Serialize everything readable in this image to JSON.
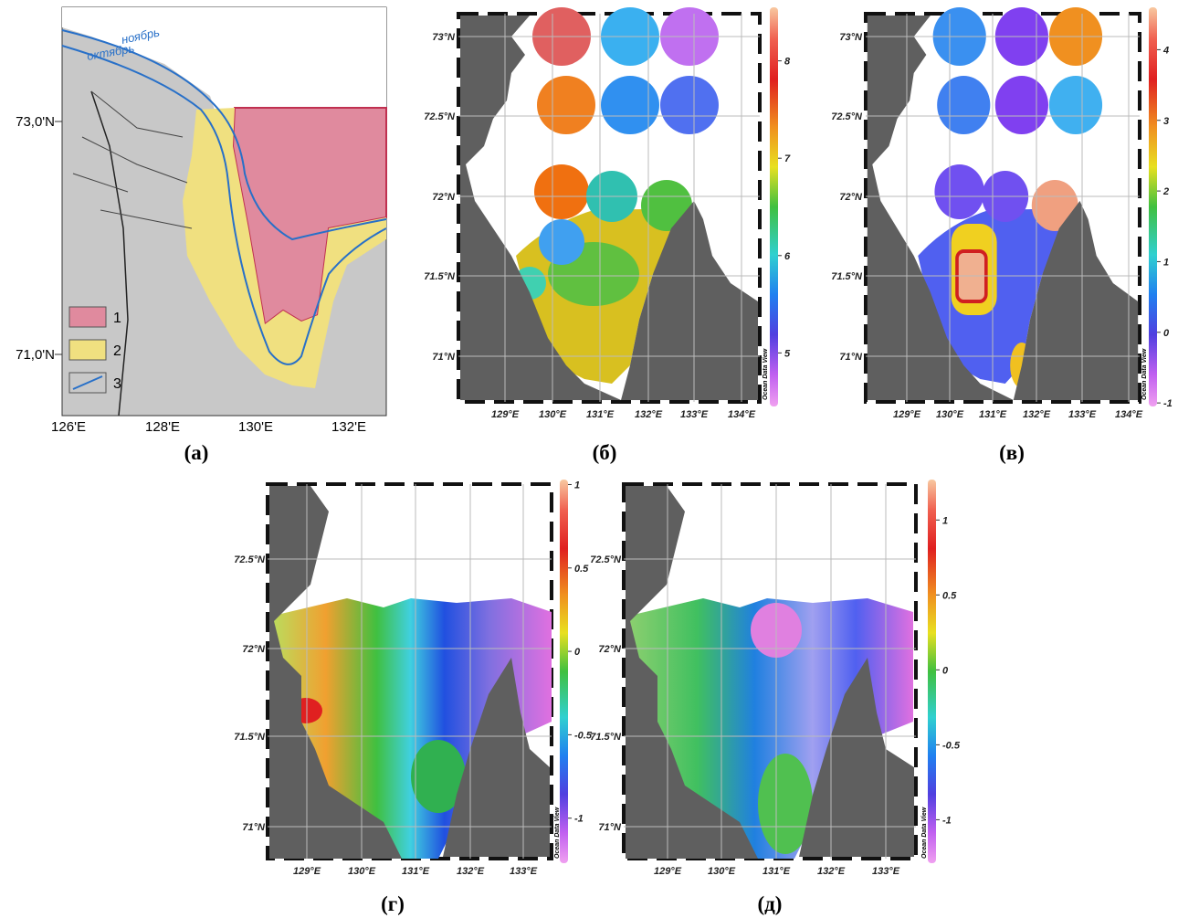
{
  "panel_a": {
    "label": "(а)",
    "curve_labels": [
      "ноябрь",
      "октябрь"
    ],
    "lat_labels": [
      "73,0'N",
      "71,0'N"
    ],
    "lon_labels": [
      "126'E",
      "128'E",
      "130'E",
      "132'E"
    ],
    "legend": [
      "1",
      "2",
      "3"
    ]
  },
  "panel_b": {
    "label": "(б)",
    "lat_labels": [
      "73°N",
      "72.5°N",
      "72°N",
      "71.5°N",
      "71°N"
    ],
    "lon_labels": [
      "129°E",
      "130°E",
      "131°E",
      "132°E",
      "133°E",
      "134°E"
    ],
    "colorbar": {
      "range": [
        4.45,
        8.55
      ],
      "ticks": [
        8,
        7,
        6,
        5
      ]
    },
    "credit": "Ocean Data View"
  },
  "panel_c": {
    "label": "(в)",
    "lat_labels": [
      "73°N",
      "72.5°N",
      "72°N",
      "71.5°N",
      "71°N"
    ],
    "lon_labels": [
      "129°E",
      "130°E",
      "131°E",
      "132°E",
      "133°E",
      "134°E"
    ],
    "colorbar": {
      "range": [
        -1.05,
        4.6
      ],
      "ticks": [
        4,
        3,
        2,
        1,
        0,
        -1
      ]
    },
    "credit": "Ocean Data View"
  },
  "panel_d": {
    "label": "(г)",
    "lat_labels": [
      "72.5°N",
      "72°N",
      "71.5°N",
      "71°N"
    ],
    "lon_labels": [
      "129°E",
      "130°E",
      "131°E",
      "132°E",
      "133°E"
    ],
    "colorbar": {
      "range": [
        -1.27,
        1.03
      ],
      "ticks": [
        1,
        0.5,
        0,
        -0.5,
        -1
      ]
    },
    "credit": "Ocean Data View"
  },
  "panel_e": {
    "label": "(д)",
    "lat_labels": [
      "72.5°N",
      "72°N",
      "71.5°N",
      "71°N"
    ],
    "lon_labels": [
      "129°E",
      "130°E",
      "131°E",
      "132°E",
      "133°E"
    ],
    "colorbar": {
      "range": [
        -1.29,
        1.27
      ],
      "ticks": [
        1,
        0.5,
        0,
        -0.5,
        -1
      ]
    },
    "credit": "Ocean Data View"
  }
}
